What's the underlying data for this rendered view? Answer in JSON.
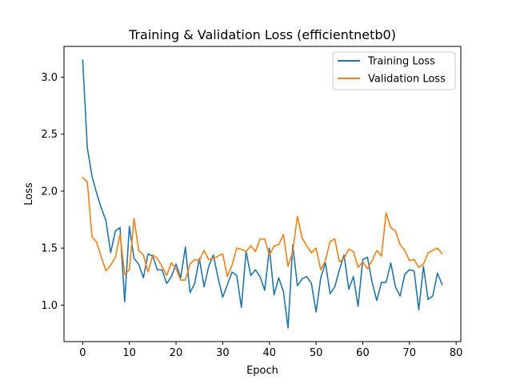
{
  "chart_data": {
    "type": "line",
    "title": "Training & Validation Loss (efficientnetb0)",
    "xlabel": "Epoch",
    "ylabel": "Loss",
    "xlim": [
      -4,
      81
    ],
    "ylim": [
      0.68,
      3.27
    ],
    "x_ticks": [
      0,
      10,
      20,
      30,
      40,
      50,
      60,
      70,
      80
    ],
    "y_ticks": [
      1.0,
      1.5,
      2.0,
      2.5,
      3.0
    ],
    "y_tick_labels": [
      "1.0",
      "1.5",
      "2.0",
      "2.5",
      "3.0"
    ],
    "grid": false,
    "legend_position": "top-right",
    "x": [
      0,
      1,
      2,
      3,
      4,
      5,
      6,
      7,
      8,
      9,
      10,
      11,
      12,
      13,
      14,
      15,
      16,
      17,
      18,
      19,
      20,
      21,
      22,
      23,
      24,
      25,
      26,
      27,
      28,
      29,
      30,
      31,
      32,
      33,
      34,
      35,
      36,
      37,
      38,
      39,
      40,
      41,
      42,
      43,
      44,
      45,
      46,
      47,
      48,
      49,
      50,
      51,
      52,
      53,
      54,
      55,
      56,
      57,
      58,
      59,
      60,
      61,
      62,
      63,
      64,
      65,
      66,
      67,
      68,
      69,
      70,
      71,
      72,
      73,
      74,
      75,
      76,
      77
    ],
    "series": [
      {
        "name": "Training Loss",
        "color": "#1f77b4",
        "values": [
          3.15,
          2.38,
          2.13,
          1.98,
          1.85,
          1.74,
          1.46,
          1.65,
          1.68,
          1.03,
          1.69,
          1.41,
          1.36,
          1.24,
          1.45,
          1.43,
          1.31,
          1.31,
          1.19,
          1.25,
          1.36,
          1.24,
          1.51,
          1.11,
          1.19,
          1.41,
          1.16,
          1.34,
          1.44,
          1.24,
          1.07,
          1.18,
          1.29,
          1.26,
          0.98,
          1.47,
          1.26,
          1.31,
          1.25,
          1.13,
          1.5,
          1.09,
          1.24,
          1.12,
          0.8,
          1.53,
          1.17,
          1.23,
          1.25,
          1.19,
          0.94,
          1.24,
          1.37,
          1.1,
          1.16,
          1.31,
          1.44,
          1.14,
          1.25,
          0.99,
          1.4,
          1.42,
          1.2,
          1.04,
          1.2,
          1.2,
          1.37,
          1.16,
          1.08,
          1.27,
          1.31,
          1.3,
          0.96,
          1.34,
          1.05,
          1.08,
          1.28,
          1.18
        ]
      },
      {
        "name": "Validation Loss",
        "color": "#ff7f0e",
        "values": [
          2.12,
          2.08,
          1.6,
          1.55,
          1.42,
          1.3,
          1.35,
          1.42,
          1.62,
          1.27,
          1.31,
          1.76,
          1.48,
          1.44,
          1.29,
          1.44,
          1.41,
          1.34,
          1.26,
          1.37,
          1.32,
          1.22,
          1.22,
          1.36,
          1.4,
          1.39,
          1.48,
          1.4,
          1.41,
          1.43,
          1.45,
          1.25,
          1.35,
          1.5,
          1.49,
          1.47,
          1.52,
          1.47,
          1.58,
          1.58,
          1.44,
          1.52,
          1.53,
          1.62,
          1.34,
          1.47,
          1.78,
          1.59,
          1.52,
          1.46,
          1.5,
          1.31,
          1.39,
          1.56,
          1.58,
          1.38,
          1.41,
          1.49,
          1.47,
          1.33,
          1.38,
          1.32,
          1.39,
          1.48,
          1.43,
          1.81,
          1.68,
          1.65,
          1.53,
          1.48,
          1.39,
          1.4,
          1.33,
          1.36,
          1.46,
          1.48,
          1.5,
          1.45
        ]
      }
    ]
  }
}
